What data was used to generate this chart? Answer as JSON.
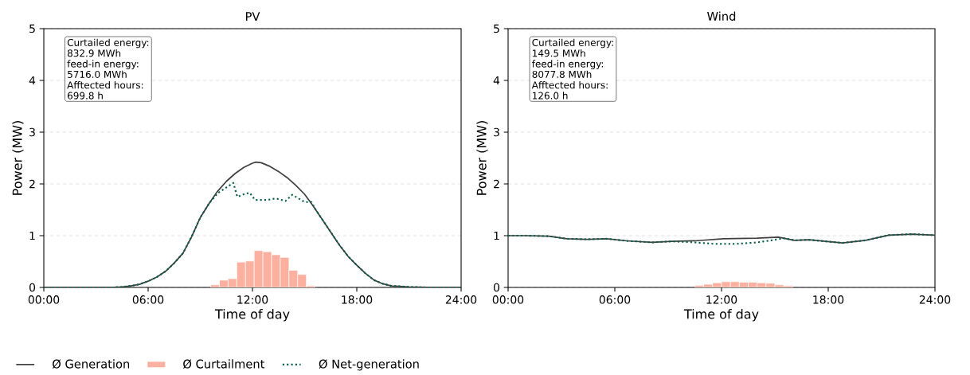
{
  "chart_data": [
    {
      "type": "line",
      "title": "PV",
      "xlabel": "Time of day",
      "ylabel": "Power (MW)",
      "xlim": [
        0,
        24
      ],
      "ylim": [
        0,
        5
      ],
      "xticks": [
        {
          "value": 0,
          "label": "00:00"
        },
        {
          "value": 6,
          "label": "06:00"
        },
        {
          "value": 12,
          "label": "12:00"
        },
        {
          "value": 18,
          "label": "18:00"
        },
        {
          "value": 24,
          "label": "24:00"
        }
      ],
      "yticks": [
        0,
        1,
        2,
        3,
        4,
        5
      ],
      "grid": "y",
      "legend": "bottom",
      "annotations": [
        "Curtailed energy:",
        "832.9 MWh",
        "feed-in energy:",
        "5716.0 MWh",
        "Afftected hours:",
        "699.8 h"
      ],
      "series": [
        {
          "name": "Ø Generation",
          "line_style": "solid",
          "color": "#404040",
          "x": [
            0,
            2,
            4,
            4.5,
            5,
            5.5,
            6,
            6.5,
            7,
            7.5,
            8,
            8.5,
            9,
            9.5,
            10,
            10.5,
            11,
            11.5,
            12,
            12.2,
            12.5,
            13,
            13.5,
            14,
            14.5,
            15,
            15.5,
            16,
            16.5,
            17,
            17.5,
            18,
            18.5,
            19,
            19.5,
            20,
            21,
            22,
            24
          ],
          "values": [
            0,
            0,
            0,
            0.01,
            0.03,
            0.06,
            0.12,
            0.2,
            0.31,
            0.47,
            0.66,
            0.98,
            1.35,
            1.62,
            1.86,
            2.05,
            2.2,
            2.32,
            2.4,
            2.42,
            2.41,
            2.34,
            2.24,
            2.12,
            1.97,
            1.8,
            1.57,
            1.32,
            1.07,
            0.82,
            0.6,
            0.43,
            0.27,
            0.14,
            0.07,
            0.03,
            0.01,
            0,
            0
          ]
        },
        {
          "name": "Ø Curtailment",
          "type": "bar",
          "color": "#fbb0a0",
          "x": [
            9.85,
            10.35,
            10.85,
            11.35,
            11.85,
            12.35,
            12.85,
            13.35,
            13.85,
            14.35,
            14.85,
            15.35
          ],
          "values": [
            0.05,
            0.14,
            0.17,
            0.49,
            0.51,
            0.71,
            0.69,
            0.63,
            0.58,
            0.33,
            0.25,
            0.03
          ]
        },
        {
          "name": "Ø Net-generation",
          "line_style": "dotted",
          "color": "#0b5e4a",
          "x": [
            0,
            2,
            4,
            4.5,
            5,
            5.5,
            6,
            6.5,
            7,
            7.5,
            8,
            8.5,
            9,
            9.5,
            10,
            10.9,
            11.13,
            11.5,
            11.84,
            12.15,
            12.87,
            13.34,
            13.9,
            14.29,
            15.0,
            15.4,
            15.6,
            16,
            16.5,
            17,
            17.5,
            18,
            18.5,
            19,
            19.5,
            20,
            21,
            22,
            24
          ],
          "values": [
            0,
            0,
            0,
            0.01,
            0.03,
            0.06,
            0.12,
            0.2,
            0.31,
            0.47,
            0.66,
            0.98,
            1.35,
            1.62,
            1.82,
            2.02,
            1.75,
            1.8,
            1.83,
            1.69,
            1.69,
            1.72,
            1.67,
            1.79,
            1.65,
            1.65,
            1.52,
            1.32,
            1.07,
            0.82,
            0.6,
            0.43,
            0.27,
            0.14,
            0.07,
            0.03,
            0.01,
            0,
            0
          ]
        }
      ]
    },
    {
      "type": "line",
      "title": "Wind",
      "xlabel": "Time of day",
      "ylabel": "Power (MW)",
      "xlim": [
        0,
        24
      ],
      "ylim": [
        0,
        5
      ],
      "xticks": [
        {
          "value": 0,
          "label": "00:00"
        },
        {
          "value": 6,
          "label": "06:00"
        },
        {
          "value": 12,
          "label": "12:00"
        },
        {
          "value": 18,
          "label": "18:00"
        },
        {
          "value": 24,
          "label": "24:00"
        }
      ],
      "yticks": [
        0,
        1,
        2,
        3,
        4,
        5
      ],
      "grid": "y",
      "annotations": [
        "Curtailed energy:",
        "149.5 MWh",
        "feed-in energy:",
        "8077.8 MWh",
        "Afftected hours:",
        "126.0 h"
      ],
      "series": [
        {
          "line_style": "solid",
          "color": "#404040",
          "x": [
            0,
            1,
            2.28,
            3.3,
            4.43,
            5.55,
            6.67,
            8.1,
            9.2,
            10.5,
            12.1,
            14.0,
            15.2,
            16.1,
            16.9,
            18.8,
            20.1,
            21.4,
            22.7,
            24
          ],
          "values": [
            1.0,
            1.0,
            0.99,
            0.94,
            0.93,
            0.94,
            0.9,
            0.87,
            0.89,
            0.9,
            0.94,
            0.95,
            0.97,
            0.91,
            0.92,
            0.86,
            0.91,
            1.01,
            1.03,
            1.01
          ]
        },
        {
          "type": "bar",
          "color": "#fbb0a0",
          "x": [
            10.75,
            11.25,
            11.75,
            12.25,
            12.75,
            13.25,
            13.75,
            14.25,
            14.75,
            15.25,
            15.75
          ],
          "values": [
            0.04,
            0.06,
            0.09,
            0.11,
            0.11,
            0.1,
            0.1,
            0.09,
            0.08,
            0.05,
            0.03
          ]
        },
        {
          "line_style": "dotted",
          "color": "#0b5e4a",
          "x": [
            0,
            1,
            2.28,
            3.3,
            4.43,
            5.55,
            6.67,
            8.1,
            9.2,
            10.5,
            11.64,
            12.76,
            14.0,
            15.0,
            15.5,
            16.1,
            16.9,
            18.8,
            20.1,
            21.4,
            22.7,
            24
          ],
          "values": [
            1.0,
            1.0,
            0.99,
            0.94,
            0.93,
            0.94,
            0.9,
            0.87,
            0.89,
            0.87,
            0.84,
            0.84,
            0.87,
            0.92,
            0.95,
            0.91,
            0.92,
            0.86,
            0.91,
            1.01,
            1.03,
            1.01
          ]
        }
      ]
    }
  ]
}
